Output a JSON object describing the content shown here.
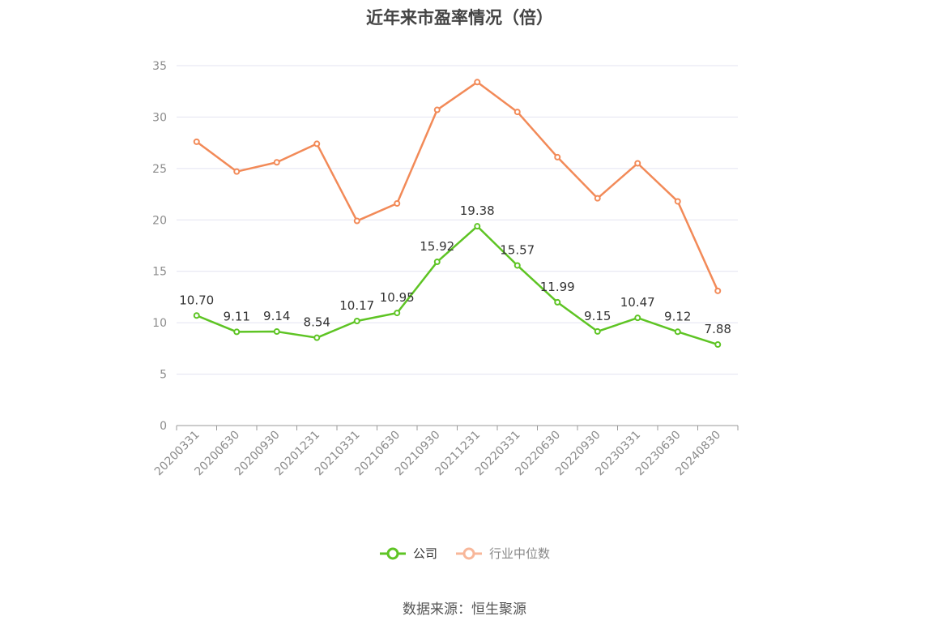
{
  "title": "近年来市盈率情况（倍）",
  "source": "数据来源：恒生聚源",
  "colors": {
    "company": "#5ec424",
    "industry": "#f28a58",
    "industry_legend": "#f8b79a",
    "grid": "#e3e3f0",
    "axis": "#999999"
  },
  "chart_data": {
    "type": "line",
    "categories": [
      "20200331",
      "20200630",
      "20200930",
      "20201231",
      "20210331",
      "20210630",
      "20210930",
      "20211231",
      "20220331",
      "20220630",
      "20220930",
      "20230331",
      "20230630",
      "20240830"
    ],
    "series": [
      {
        "name": "公司",
        "values": [
          10.7,
          9.11,
          9.14,
          8.54,
          10.17,
          10.95,
          15.92,
          19.38,
          15.57,
          11.99,
          9.15,
          10.47,
          9.12,
          7.88
        ],
        "labels": [
          "10.70",
          "9.11",
          "9.14",
          "8.54",
          "10.17",
          "10.95",
          "15.92",
          "19.38",
          "15.57",
          "11.99",
          "9.15",
          "10.47",
          "9.12",
          "7.88"
        ]
      },
      {
        "name": "行业中位数",
        "values": [
          27.6,
          24.7,
          25.6,
          27.4,
          19.9,
          21.6,
          30.7,
          33.4,
          30.5,
          26.1,
          22.1,
          25.5,
          21.8,
          13.1
        ]
      }
    ],
    "yticks": [
      0,
      5,
      10,
      15,
      20,
      25,
      30,
      35
    ],
    "ylim": [
      0,
      35
    ],
    "grid": true,
    "legend_position": "bottom"
  }
}
